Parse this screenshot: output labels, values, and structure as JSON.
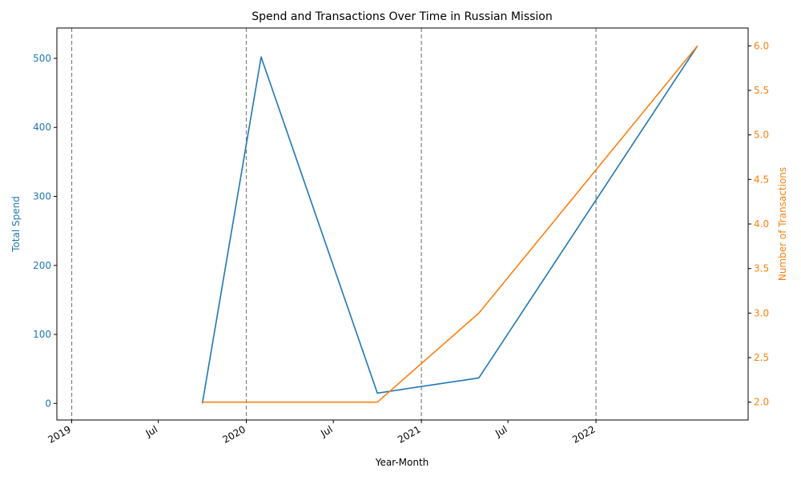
{
  "chart_data": {
    "type": "line",
    "title": "Spend and Transactions Over Time in Russian Mission",
    "xlabel": "Year-Month",
    "x_range": [
      "2018-12-01",
      "2022-11-15"
    ],
    "x_ticks": [
      {
        "date": "2019-01-01",
        "label": "2019"
      },
      {
        "date": "2019-07-01",
        "label": "Jul"
      },
      {
        "date": "2020-01-01",
        "label": "2020"
      },
      {
        "date": "2020-07-01",
        "label": "Jul"
      },
      {
        "date": "2021-01-01",
        "label": "2021"
      },
      {
        "date": "2021-07-01",
        "label": "Jul"
      },
      {
        "date": "2022-01-01",
        "label": "2022"
      }
    ],
    "year_lines": [
      "2019-01-01",
      "2020-01-01",
      "2021-01-01",
      "2022-01-01"
    ],
    "left_axis": {
      "label": "Total Spend",
      "color": "#1f77b4",
      "ylim": [
        -24,
        544
      ],
      "ticks": [
        0,
        100,
        200,
        300,
        400,
        500
      ]
    },
    "right_axis": {
      "label": "Number of Transactions",
      "color": "#ff7f0e",
      "ylim": [
        1.8,
        6.2
      ],
      "ticks": [
        "2.0",
        "2.5",
        "3.0",
        "3.5",
        "4.0",
        "4.5",
        "5.0",
        "5.5",
        "6.0"
      ]
    },
    "series": [
      {
        "axis": "left",
        "color": "#1f77b4",
        "points": [
          {
            "x": "2019-10-01",
            "y": 0
          },
          {
            "x": "2020-02-01",
            "y": 502
          },
          {
            "x": "2020-10-01",
            "y": 15
          },
          {
            "x": "2021-05-01",
            "y": 37
          },
          {
            "x": "2022-08-01",
            "y": 518
          }
        ]
      },
      {
        "axis": "right",
        "color": "#ff7f0e",
        "points": [
          {
            "x": "2019-10-01",
            "y": 2
          },
          {
            "x": "2020-02-01",
            "y": 2
          },
          {
            "x": "2020-10-01",
            "y": 2
          },
          {
            "x": "2021-05-01",
            "y": 3
          },
          {
            "x": "2022-08-01",
            "y": 6
          }
        ]
      }
    ],
    "grid": false
  }
}
